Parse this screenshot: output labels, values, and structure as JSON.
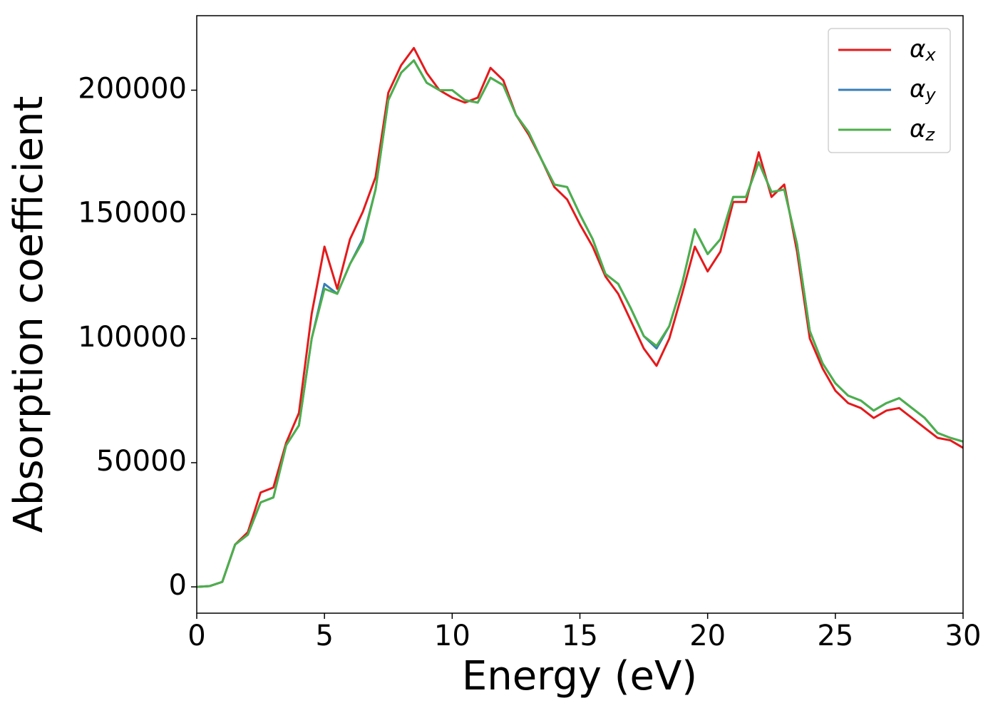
{
  "chart_data": {
    "type": "line",
    "xlabel": "Energy (eV)",
    "ylabel": "Absorption coefficient",
    "x": [
      0,
      0.5,
      1,
      1.5,
      2,
      2.5,
      3,
      3.5,
      4,
      4.5,
      5,
      5.5,
      6,
      6.5,
      7,
      7.5,
      8,
      8.5,
      9,
      9.5,
      10,
      10.5,
      11,
      11.5,
      12,
      12.5,
      13,
      13.5,
      14,
      14.5,
      15,
      15.5,
      16,
      16.5,
      17,
      17.5,
      18,
      18.5,
      19,
      19.5,
      20,
      20.5,
      21,
      21.5,
      22,
      22.5,
      23,
      23.5,
      24,
      24.5,
      25,
      25.5,
      26,
      26.5,
      27,
      27.5,
      28,
      28.5,
      29,
      29.5,
      30
    ],
    "series": [
      {
        "name": "αx",
        "color": "#e41a1c",
        "values": [
          0,
          300,
          2000,
          17000,
          22000,
          38000,
          40000,
          58000,
          70000,
          110000,
          137000,
          120000,
          140000,
          151000,
          165000,
          199000,
          210000,
          217000,
          207000,
          200000,
          197000,
          195000,
          197000,
          209000,
          204000,
          190000,
          182000,
          172000,
          161000,
          156000,
          146000,
          137000,
          125000,
          118000,
          107000,
          96000,
          89000,
          100000,
          118000,
          137000,
          127000,
          135000,
          155000,
          155000,
          175000,
          157000,
          162000,
          135000,
          100000,
          88000,
          79000,
          74000,
          72000,
          68000,
          71000,
          72000,
          68000,
          64000,
          60000,
          59000,
          56000
        ]
      },
      {
        "name": "αy",
        "color": "#377eb8",
        "values": [
          0,
          300,
          2000,
          17000,
          21000,
          34000,
          36000,
          57000,
          65000,
          100000,
          122000,
          118000,
          130000,
          140000,
          160000,
          196000,
          207000,
          212000,
          203000,
          200000,
          200000,
          196000,
          195000,
          205000,
          202000,
          190000,
          183000,
          172000,
          162000,
          161000,
          150000,
          140000,
          126000,
          122000,
          112000,
          101000,
          96000,
          105000,
          122000,
          144000,
          134000,
          140000,
          157000,
          157000,
          171000,
          159000,
          160000,
          138000,
          103000,
          90000,
          82000,
          77000,
          75000,
          71000,
          74000,
          76000,
          72000,
          68000,
          62000,
          60000,
          58500
        ]
      },
      {
        "name": "αz",
        "color": "#4daf4a",
        "values": [
          0,
          300,
          2000,
          17000,
          21000,
          34000,
          36000,
          57000,
          65000,
          100000,
          120000,
          118000,
          130000,
          139000,
          160000,
          196000,
          207000,
          212000,
          203000,
          200000,
          200000,
          196000,
          195000,
          205000,
          202000,
          190000,
          183000,
          172000,
          162000,
          161000,
          150000,
          140000,
          126000,
          122000,
          112000,
          101000,
          97000,
          105000,
          122000,
          144000,
          134000,
          140000,
          157000,
          157000,
          171000,
          159000,
          160000,
          138000,
          103000,
          90000,
          82000,
          77000,
          75000,
          71000,
          74000,
          76000,
          72000,
          68000,
          62000,
          60000,
          58500
        ]
      }
    ],
    "xlim": [
      0,
      30
    ],
    "xticks": [
      0,
      5,
      10,
      15,
      20,
      25,
      30
    ],
    "ylim": [
      -10600,
      230000
    ],
    "yticks": [
      0,
      50000,
      100000,
      150000,
      200000
    ],
    "legend": "upper right"
  }
}
